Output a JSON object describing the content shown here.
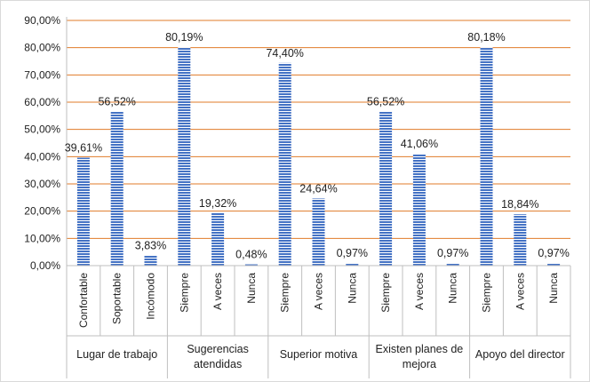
{
  "chart_data": {
    "type": "bar",
    "title": "",
    "xlabel": "",
    "ylabel": "",
    "ylim": [
      0,
      90
    ],
    "y_ticks": [
      "0,00%",
      "10,00%",
      "20,00%",
      "30,00%",
      "40,00%",
      "50,00%",
      "60,00%",
      "70,00%",
      "80,00%",
      "90,00%"
    ],
    "grid": true,
    "legend": "none",
    "bar_color": "#4472C4",
    "grid_color": "#E07B2A",
    "groups": [
      {
        "label": "Lugar de trabajo",
        "label_lines": [
          "Lugar de trabajo"
        ],
        "categories": [
          "Confortable",
          "Soportable",
          "Incómodo"
        ],
        "values": [
          39.61,
          56.52,
          3.83
        ],
        "labels": [
          "39,61%",
          "56,52%",
          "3,83%"
        ]
      },
      {
        "label": "Sugerencias atendidas",
        "label_lines": [
          "Sugerencias",
          "atendidas"
        ],
        "categories": [
          "Siempre",
          "A veces",
          "Nunca"
        ],
        "values": [
          80.19,
          19.32,
          0.48
        ],
        "labels": [
          "80,19%",
          "19,32%",
          "0,48%"
        ]
      },
      {
        "label": "Superior motiva",
        "label_lines": [
          "Superior motiva"
        ],
        "categories": [
          "Siempre",
          "A veces",
          "Nunca"
        ],
        "values": [
          74.4,
          24.64,
          0.97
        ],
        "labels": [
          "74,40%",
          "24,64%",
          "0,97%"
        ]
      },
      {
        "label": "Existen planes de mejora",
        "label_lines": [
          "Existen planes de",
          "mejora"
        ],
        "categories": [
          "Siempre",
          "A veces",
          "Nunca"
        ],
        "values": [
          56.52,
          41.06,
          0.97
        ],
        "labels": [
          "56,52%",
          "41,06%",
          "0,97%"
        ]
      },
      {
        "label": "Apoyo del director",
        "label_lines": [
          "Apoyo del director"
        ],
        "categories": [
          "Siempre",
          "A veces",
          "Nunca"
        ],
        "values": [
          80.18,
          18.84,
          0.97
        ],
        "labels": [
          "80,18%",
          "18,84%",
          "0,97%"
        ]
      }
    ]
  }
}
